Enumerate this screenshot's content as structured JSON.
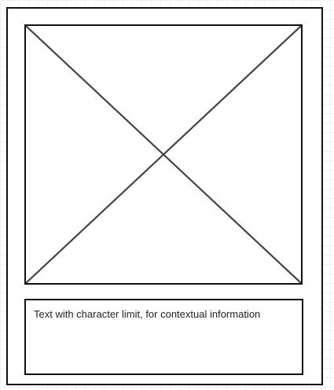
{
  "card": {
    "image": {
      "icon": "image-placeholder-x-icon"
    },
    "caption": "Text with character limit, for contextual information"
  },
  "colors": {
    "border": "#111111",
    "line": "#444444",
    "text": "#222222",
    "grid": "#f1f1f1"
  }
}
